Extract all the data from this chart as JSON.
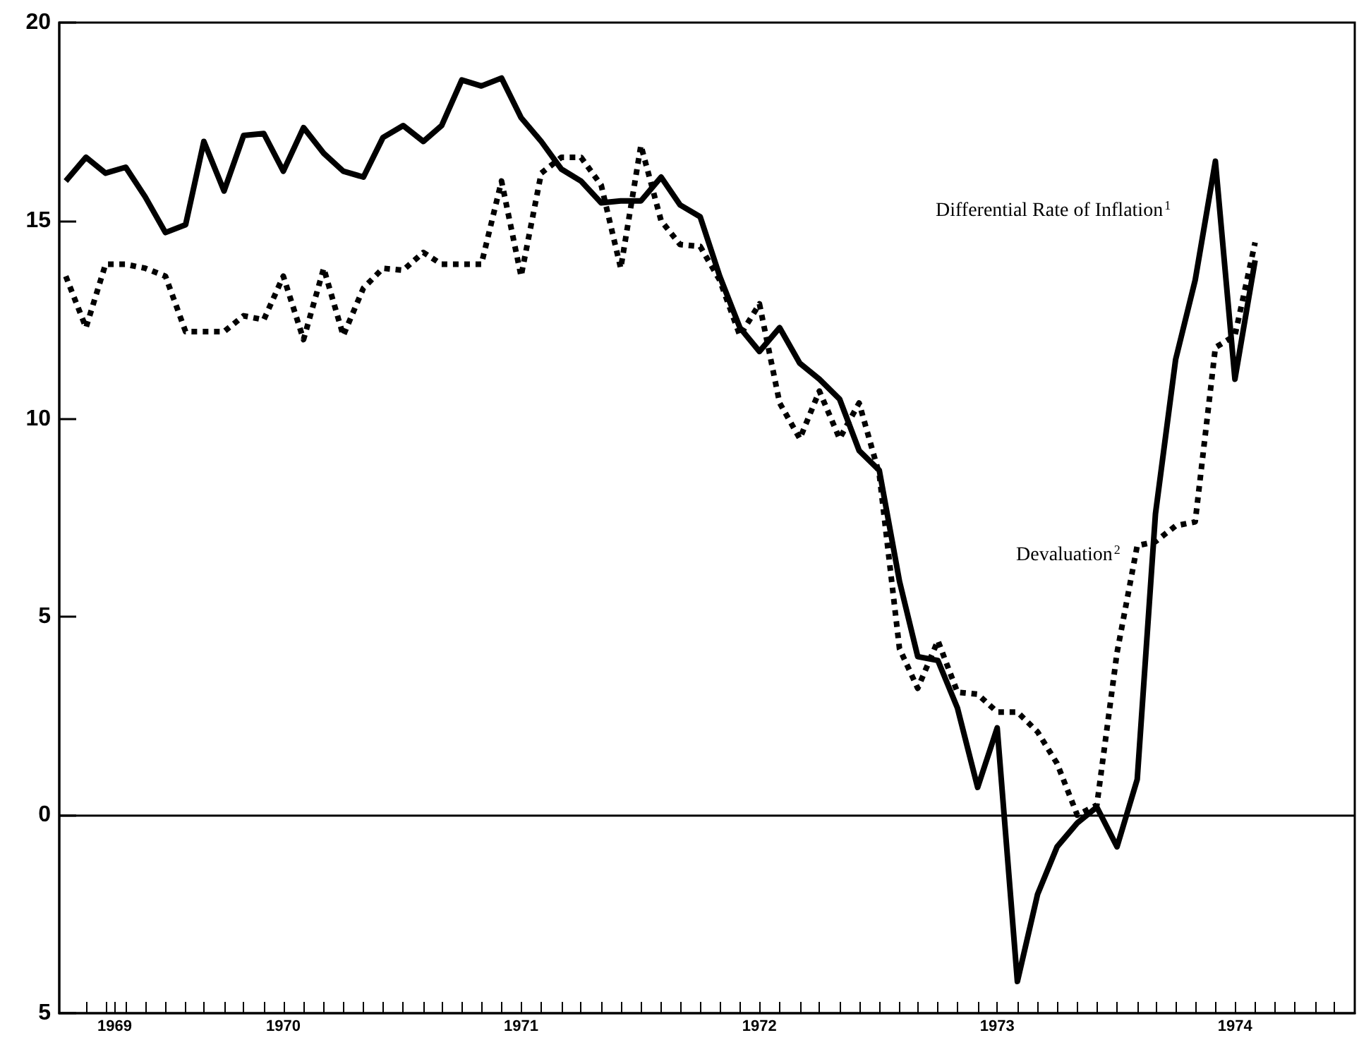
{
  "chart_data": {
    "type": "line",
    "x": [
      "1969-08",
      "1969-09",
      "1969-10",
      "1969-11",
      "1969-12",
      "1970-01",
      "1970-02",
      "1970-03",
      "1970-04",
      "1970-05",
      "1970-06",
      "1970-07",
      "1970-08",
      "1970-09",
      "1970-10",
      "1970-11",
      "1970-12",
      "1971-01",
      "1971-02",
      "1971-03",
      "1971-04",
      "1971-05",
      "1971-06",
      "1971-07",
      "1971-08",
      "1971-09",
      "1971-10",
      "1971-11",
      "1971-12",
      "1972-01",
      "1972-02",
      "1972-03",
      "1972-04",
      "1972-05",
      "1972-06",
      "1972-07",
      "1972-08",
      "1972-09",
      "1972-10",
      "1972-11",
      "1972-12",
      "1973-01",
      "1973-02",
      "1973-03",
      "1973-04",
      "1973-05",
      "1973-06",
      "1973-07",
      "1973-08",
      "1973-09",
      "1973-10",
      "1973-11",
      "1973-12",
      "1974-01",
      "1974-02",
      "1974-03",
      "1974-04",
      "1974-05",
      "1974-06",
      "1974-07",
      "1974-08"
    ],
    "xlim": [
      "1969-07-22",
      "1975-01-01"
    ],
    "xticks": [
      {
        "value": "1969-09",
        "label": null
      },
      {
        "value": "1969-10",
        "label": null
      },
      {
        "value": "1969-10-15",
        "label": "1969"
      },
      {
        "value": "1969-11",
        "label": null
      },
      {
        "value": "1969-12",
        "label": null
      },
      {
        "value": "1970-01",
        "label": null
      },
      {
        "value": "1970-02",
        "label": null
      },
      {
        "value": "1970-03",
        "label": null
      },
      {
        "value": "1970-04",
        "label": null
      },
      {
        "value": "1970-05",
        "label": null
      },
      {
        "value": "1970-06",
        "label": null
      },
      {
        "value": "1970-07",
        "label": "1970"
      },
      {
        "value": "1970-08",
        "label": null
      },
      {
        "value": "1970-09",
        "label": null
      },
      {
        "value": "1970-10",
        "label": null
      },
      {
        "value": "1970-11",
        "label": null
      },
      {
        "value": "1970-12",
        "label": null
      },
      {
        "value": "1971-01",
        "label": null
      },
      {
        "value": "1971-02",
        "label": null
      },
      {
        "value": "1971-03",
        "label": null
      },
      {
        "value": "1971-04",
        "label": null
      },
      {
        "value": "1971-05",
        "label": null
      },
      {
        "value": "1971-06",
        "label": null
      },
      {
        "value": "1971-07",
        "label": "1971"
      },
      {
        "value": "1971-08",
        "label": null
      },
      {
        "value": "1971-09",
        "label": null
      },
      {
        "value": "1971-10",
        "label": null
      },
      {
        "value": "1971-11",
        "label": null
      },
      {
        "value": "1971-12",
        "label": null
      },
      {
        "value": "1972-01",
        "label": null
      },
      {
        "value": "1972-02",
        "label": null
      },
      {
        "value": "1972-03",
        "label": null
      },
      {
        "value": "1972-04",
        "label": null
      },
      {
        "value": "1972-05",
        "label": null
      },
      {
        "value": "1972-06",
        "label": null
      },
      {
        "value": "1972-07",
        "label": "1972"
      },
      {
        "value": "1972-08",
        "label": null
      },
      {
        "value": "1972-09",
        "label": null
      },
      {
        "value": "1972-10",
        "label": null
      },
      {
        "value": "1972-11",
        "label": null
      },
      {
        "value": "1972-12",
        "label": null
      },
      {
        "value": "1973-01",
        "label": null
      },
      {
        "value": "1973-02",
        "label": null
      },
      {
        "value": "1973-03",
        "label": null
      },
      {
        "value": "1973-04",
        "label": null
      },
      {
        "value": "1973-05",
        "label": null
      },
      {
        "value": "1973-06",
        "label": null
      },
      {
        "value": "1973-07",
        "label": "1973"
      },
      {
        "value": "1973-08",
        "label": null
      },
      {
        "value": "1973-09",
        "label": null
      },
      {
        "value": "1973-10",
        "label": null
      },
      {
        "value": "1973-11",
        "label": null
      },
      {
        "value": "1973-12",
        "label": null
      },
      {
        "value": "1974-01",
        "label": null
      },
      {
        "value": "1974-02",
        "label": null
      },
      {
        "value": "1974-03",
        "label": null
      },
      {
        "value": "1974-04",
        "label": null
      },
      {
        "value": "1974-05",
        "label": null
      },
      {
        "value": "1974-06",
        "label": null
      },
      {
        "value": "1974-07",
        "label": "1974"
      },
      {
        "value": "1974-08",
        "label": null
      },
      {
        "value": "1974-09",
        "label": null
      },
      {
        "value": "1974-10",
        "label": null
      },
      {
        "value": "1974-11",
        "label": null
      },
      {
        "value": "1974-12",
        "label": null
      }
    ],
    "ylim": [
      -5,
      20
    ],
    "yticks": [
      {
        "value": -5,
        "label": "5"
      },
      0,
      5,
      10,
      15,
      20
    ],
    "marker": "none",
    "ref_lines": [
      {
        "axis": "y",
        "value": 0,
        "color": "#000000"
      }
    ],
    "series": [
      {
        "name": "Differential Rate of Inflation$^{1}$",
        "color": "#000000",
        "line_style": "solid",
        "values": [
          16.0,
          16.6,
          16.2,
          16.35,
          15.6,
          14.7,
          14.9,
          17.0,
          15.75,
          17.15,
          17.2,
          16.25,
          17.35,
          16.7,
          16.25,
          16.1,
          17.1,
          17.4,
          17.0,
          17.4,
          18.55,
          18.4,
          18.6,
          17.6,
          17.0,
          16.3,
          16.0,
          15.45,
          15.5,
          15.5,
          16.1,
          15.4,
          15.1,
          13.6,
          12.3,
          11.7,
          12.3,
          11.4,
          11.0,
          10.5,
          9.2,
          8.7,
          5.9,
          4.0,
          3.9,
          2.7,
          0.7,
          2.2,
          -4.2,
          -2.0,
          -0.8,
          -0.2,
          0.2,
          -0.8,
          0.9,
          7.6,
          11.5,
          13.5,
          16.5,
          11.0,
          14.0
        ]
      },
      {
        "name": "Devaluation$^{2}$",
        "color": "#000000",
        "line_style": "dotted",
        "values": [
          13.6,
          12.3,
          13.9,
          13.9,
          13.8,
          13.6,
          12.2,
          12.2,
          12.2,
          12.6,
          12.5,
          13.6,
          12.0,
          13.8,
          12.1,
          13.3,
          13.8,
          13.75,
          14.2,
          13.9,
          13.9,
          13.9,
          16.0,
          13.6,
          16.2,
          16.6,
          16.6,
          15.9,
          13.8,
          16.9,
          15.0,
          14.4,
          14.35,
          13.5,
          12.1,
          12.9,
          10.4,
          9.5,
          10.7,
          9.5,
          10.4,
          8.6,
          4.2,
          3.2,
          4.4,
          3.1,
          3.05,
          2.6,
          2.6,
          2.1,
          1.3,
          0.0,
          0.25,
          4.1,
          6.8,
          6.9,
          7.3,
          7.4,
          11.8,
          12.1,
          14.45
        ]
      }
    ]
  }
}
